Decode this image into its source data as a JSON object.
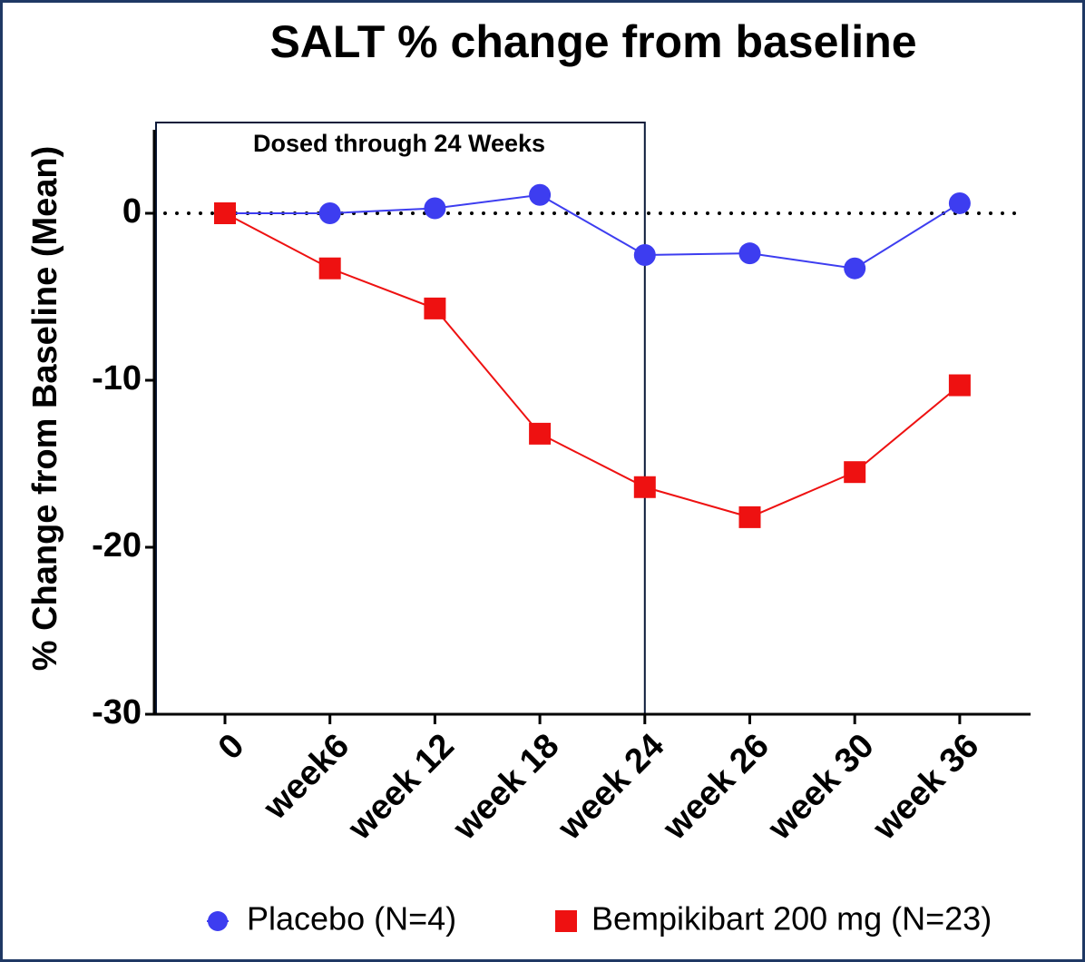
{
  "chart_data": {
    "type": "line",
    "title": "SALT % change from baseline",
    "y_label": "% Change from Baseline (Mean)",
    "annotation": "Dosed through 24 Weeks",
    "categories": [
      "0",
      "week6",
      "week 12",
      "week 18",
      "week 24",
      "week 26",
      "week 30",
      "week 36"
    ],
    "series": [
      {
        "name": "Placebo (N=4)",
        "color": "#3d3df0",
        "marker": "circle",
        "values": [
          0,
          0,
          0.3,
          1.1,
          -2.5,
          -2.4,
          -3.3,
          0.6
        ]
      },
      {
        "name": "Bempikibart 200 mg (N=23)",
        "color": "#ee1111",
        "marker": "square",
        "values": [
          0,
          -3.3,
          -5.7,
          -13.2,
          -16.4,
          -18.2,
          -15.5,
          -10.3
        ]
      }
    ],
    "ylim": [
      -30,
      5
    ],
    "yticks": [
      0,
      -10,
      -20,
      -30
    ]
  }
}
